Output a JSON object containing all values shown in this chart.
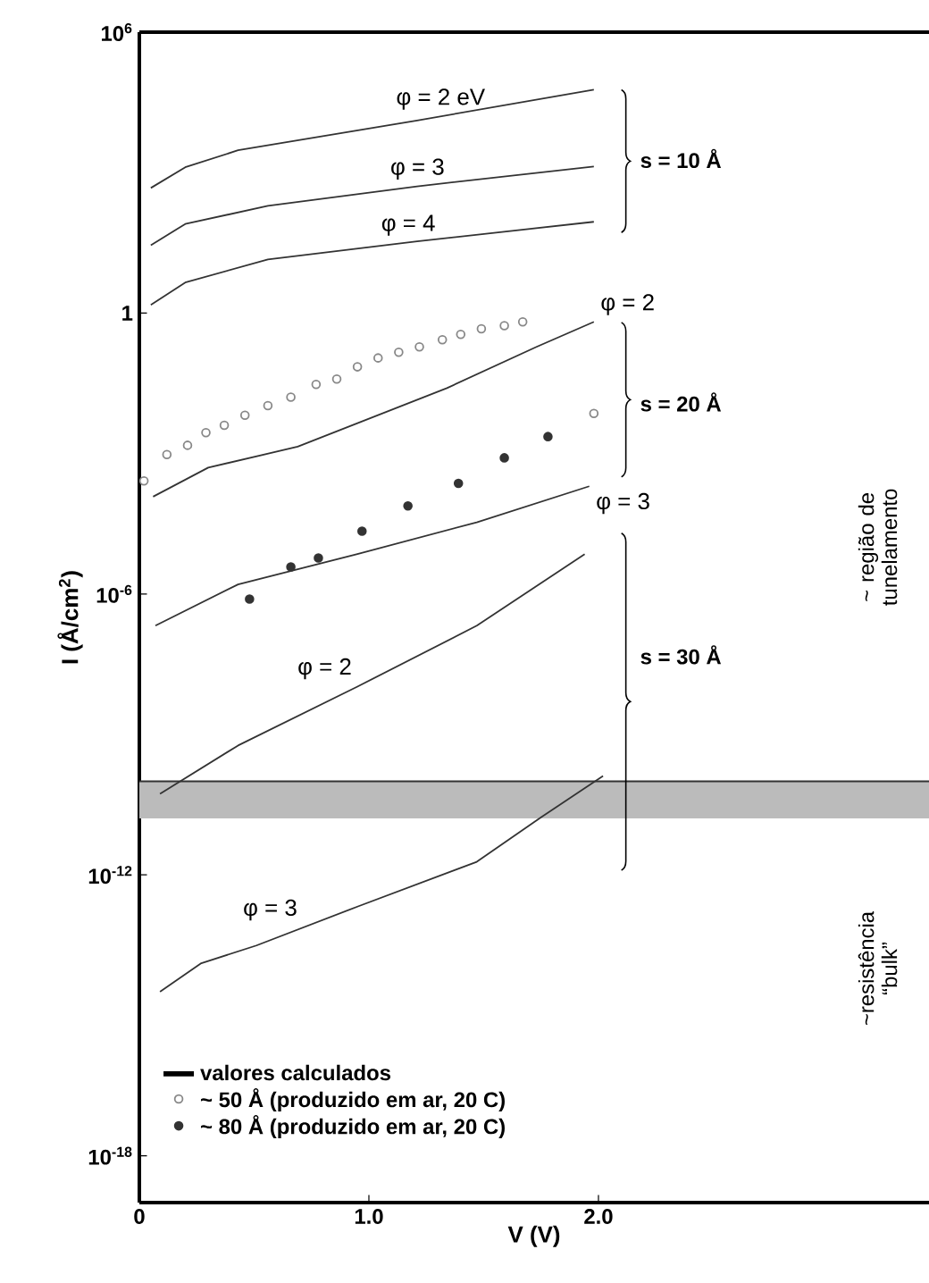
{
  "chart_data": {
    "type": "line",
    "xlabel": "V (V)",
    "ylabel": "I (Å/cm$^{2}$)",
    "xlim": [
      0,
      3.44
    ],
    "ylim": [
      1e-19,
      1000000.0
    ],
    "log": "y",
    "xticks": [
      0,
      {
        "value": 1,
        "label": "1.0"
      },
      {
        "value": 2,
        "label": "2.0"
      }
    ],
    "yticks": [
      {
        "value": 1000000.0,
        "label": "10$^{6}$"
      },
      1,
      {
        "value": 1e-06,
        "label": "10$^{-6}$"
      },
      {
        "value": 1e-12,
        "label": "10$^{-12}$"
      },
      {
        "value": 1e-18,
        "label": "10$^{-18}$"
      }
    ],
    "grid": false,
    "legend": "bottom left",
    "series": [
      {
        "name": "φ = 2 eV",
        "type": "line",
        "color": "#333333",
        "marker": "none",
        "x": [
          0.05,
          0.2,
          0.43,
          1.21,
          1.98
        ],
        "values": [
          470,
          1300,
          3000,
          13000,
          59000
        ]
      },
      {
        "name": "φ = 3",
        "type": "line",
        "color": "#333333",
        "marker": "none",
        "x": [
          0.05,
          0.2,
          0.56,
          1.21,
          1.98
        ],
        "values": [
          28,
          80,
          195,
          510,
          1350
        ]
      },
      {
        "name": "φ = 4",
        "type": "line",
        "color": "#333333",
        "marker": "none",
        "x": [
          0.05,
          0.2,
          0.56,
          1.21,
          1.98
        ],
        "values": [
          1.5,
          4.5,
          14,
          34,
          89
        ]
      },
      {
        "name": "φ = 2",
        "type": "line",
        "color": "#333333",
        "marker": "none",
        "x": [
          0.06,
          0.3,
          0.69,
          1.34,
          1.73,
          1.98
        ],
        "values": [
          0.00012,
          0.0005,
          0.0014,
          0.025,
          0.19,
          0.65
        ]
      },
      {
        "name": "φ = 3",
        "type": "line",
        "color": "#333333",
        "marker": "none",
        "x": [
          0.07,
          0.43,
          0.95,
          1.47,
          1.96
        ],
        "values": [
          2.1e-07,
          1.6e-06,
          7.1e-06,
          3.4e-05,
          0.0002
        ]
      },
      {
        "name": "φ = 2",
        "type": "line",
        "color": "#333333",
        "marker": "none",
        "x": [
          0.09,
          0.43,
          0.95,
          1.47,
          1.94
        ],
        "values": [
          5.4e-11,
          5.8e-10,
          1.05e-08,
          2.1e-07,
          7.1e-06
        ]
      },
      {
        "name": "φ = 3",
        "type": "line",
        "color": "#333333",
        "marker": "none",
        "x": [
          0.09,
          0.27,
          0.51,
          0.95,
          1.47,
          1.75,
          2.02
        ],
        "values": [
          3.2e-15,
          1.3e-14,
          3.1e-14,
          2.1e-13,
          1.9e-12,
          1.7e-11,
          1.3e-10
        ]
      },
      {
        "name": "~ 50 Å (produzido em ar, 20 C)",
        "type": "scatter",
        "color": "#888888",
        "marker": "circle",
        "x": [
          0.02,
          0.12,
          0.21,
          0.29,
          0.37,
          0.46,
          0.56,
          0.66,
          0.77,
          0.86,
          0.95,
          1.04,
          1.13,
          1.22,
          1.32,
          1.4,
          1.49,
          1.59,
          1.67,
          1.98
        ],
        "values": [
          0.00026,
          0.00095,
          0.0015,
          0.0028,
          0.004,
          0.0066,
          0.0105,
          0.016,
          0.03,
          0.039,
          0.071,
          0.11,
          0.145,
          0.19,
          0.27,
          0.35,
          0.46,
          0.54,
          0.65,
          0.0072
        ]
      },
      {
        "name": "~ 80 Å (produzido em ar, 20 C)",
        "type": "scatter",
        "color": "#333333",
        "marker": "circle",
        "x": [
          0.48,
          0.66,
          0.78,
          0.97,
          1.17,
          1.39,
          1.59,
          1.78
        ],
        "values": [
          7.8e-07,
          3.8e-06,
          5.9e-06,
          2.2e-05,
          7.6e-05,
          0.00023,
          0.00081,
          0.0023
        ]
      }
    ],
    "bands": [
      {
        "axis": "y",
        "from": 1.6e-11,
        "to": 1e-10,
        "color": "#bbbbbb"
      }
    ],
    "ref_lines": [
      {
        "axis": "y",
        "value": 1e-10,
        "color": "#333333"
      }
    ],
    "annotations": [
      "s = 10 Å",
      "s = 20 Å",
      "s = 30 Å",
      "valores calculados",
      "~ região de tunelamento",
      "~resistência “bulk”"
    ]
  }
}
